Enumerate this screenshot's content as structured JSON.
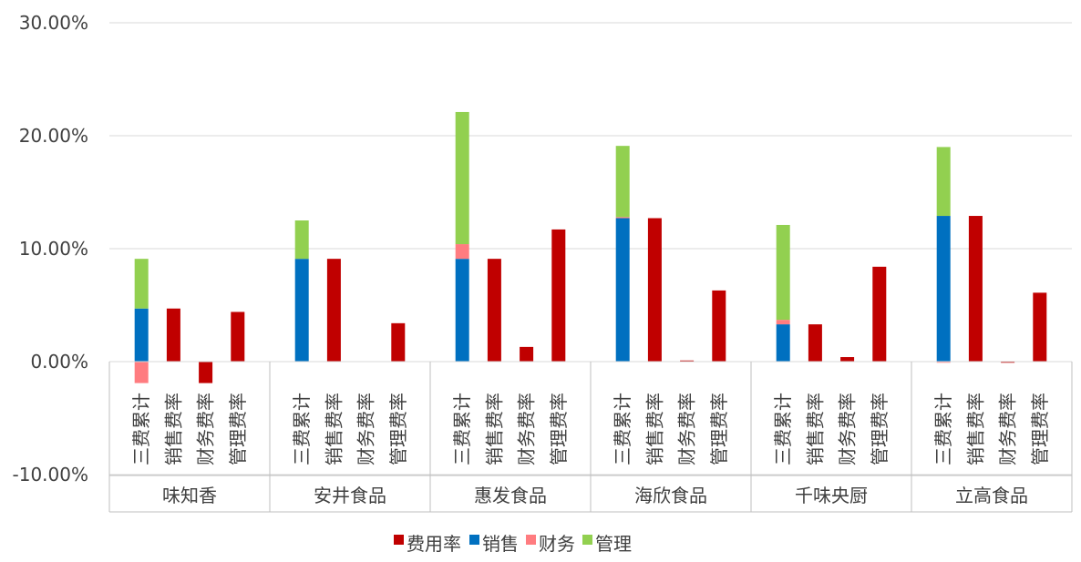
{
  "chart_data": {
    "type": "bar",
    "stacked": true,
    "y_axis": {
      "min": -0.1,
      "max": 0.3,
      "tick_labels": [
        "-10.00%",
        "0.00%",
        "10.00%",
        "20.00%",
        "30.00%"
      ],
      "gridlines": true
    },
    "groups": [
      "味知香",
      "安井食品",
      "惠发食品",
      "海欣食品",
      "千味央厨",
      "立高食品"
    ],
    "subcategories": [
      "三费累计",
      "销售费率",
      "财务费率",
      "管理费率"
    ],
    "legend": {
      "position": "bottom",
      "entries": [
        {
          "name": "费用率",
          "color": "#C00000"
        },
        {
          "name": "销售",
          "color": "#0070C0"
        },
        {
          "name": "财务",
          "color": "#FF7C80"
        },
        {
          "name": "管理",
          "color": "#92D050"
        }
      ]
    },
    "series": [
      {
        "name": "费用率",
        "color": "#C00000",
        "values": [
          null,
          0.047,
          -0.019,
          0.044,
          null,
          0.091,
          0.0,
          0.034,
          null,
          0.091,
          0.013,
          0.117,
          null,
          0.127,
          0.001,
          0.063,
          null,
          0.033,
          0.004,
          0.084,
          null,
          0.129,
          -0.001,
          0.061
        ]
      },
      {
        "name": "销售",
        "color": "#0070C0",
        "values": [
          0.047,
          null,
          null,
          null,
          0.091,
          null,
          null,
          null,
          0.091,
          null,
          null,
          null,
          0.127,
          null,
          null,
          null,
          0.033,
          null,
          null,
          null,
          0.129,
          null,
          null,
          null
        ]
      },
      {
        "name": "财务",
        "color": "#FF7C80",
        "values": [
          -0.019,
          null,
          null,
          null,
          0.0,
          null,
          null,
          null,
          0.013,
          null,
          null,
          null,
          0.001,
          null,
          null,
          null,
          0.004,
          null,
          null,
          null,
          -0.001,
          null,
          null,
          null
        ]
      },
      {
        "name": "管理",
        "color": "#92D050",
        "values": [
          0.044,
          null,
          null,
          null,
          0.034,
          null,
          null,
          null,
          0.117,
          null,
          null,
          null,
          0.063,
          null,
          null,
          null,
          0.084,
          null,
          null,
          null,
          0.061,
          null,
          null,
          null
        ]
      }
    ]
  }
}
